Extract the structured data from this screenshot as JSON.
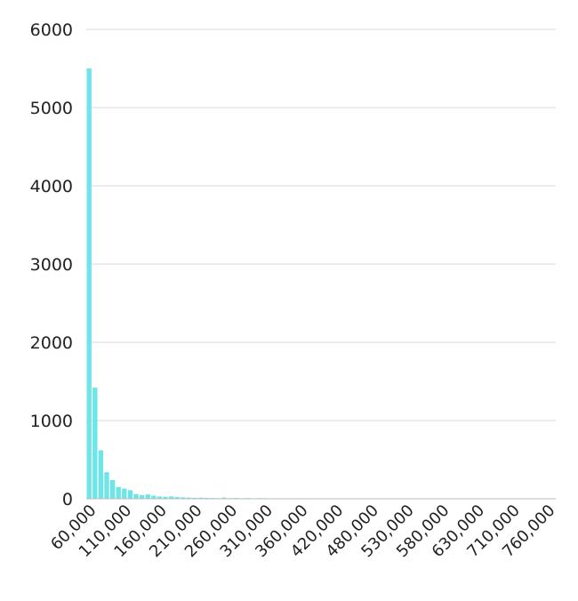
{
  "chart_data": {
    "type": "bar",
    "title": "",
    "xlabel": "",
    "ylabel": "",
    "ylim": [
      0,
      6000
    ],
    "y_ticks": [
      "0",
      "1000",
      "2000",
      "3000",
      "4000",
      "5000",
      "6000"
    ],
    "x_tick_labels": [
      "60,000",
      "110,000",
      "160,000",
      "210,000",
      "260,000",
      "310,000",
      "360,000",
      "420,000",
      "480,000",
      "530,000",
      "580,000",
      "630,000",
      "710,000",
      "760,000"
    ],
    "grid": true,
    "legend": "none",
    "bar_color": "#6ee6e8",
    "values": [
      5500,
      1420,
      620,
      340,
      240,
      150,
      130,
      110,
      60,
      45,
      55,
      40,
      30,
      25,
      30,
      22,
      18,
      15,
      12,
      14,
      12,
      10,
      8,
      15,
      8,
      10,
      7,
      9,
      6,
      8,
      7,
      5,
      6,
      5,
      4,
      5,
      6,
      4,
      3,
      5,
      4,
      3,
      3,
      4,
      3,
      3,
      2,
      3,
      2,
      4,
      2,
      3,
      2,
      2,
      3,
      2,
      2,
      2,
      1,
      2,
      1,
      2,
      1,
      1,
      1,
      1,
      1,
      1,
      1,
      1,
      1,
      0,
      1,
      1,
      0,
      1,
      0,
      1,
      0,
      0
    ]
  }
}
